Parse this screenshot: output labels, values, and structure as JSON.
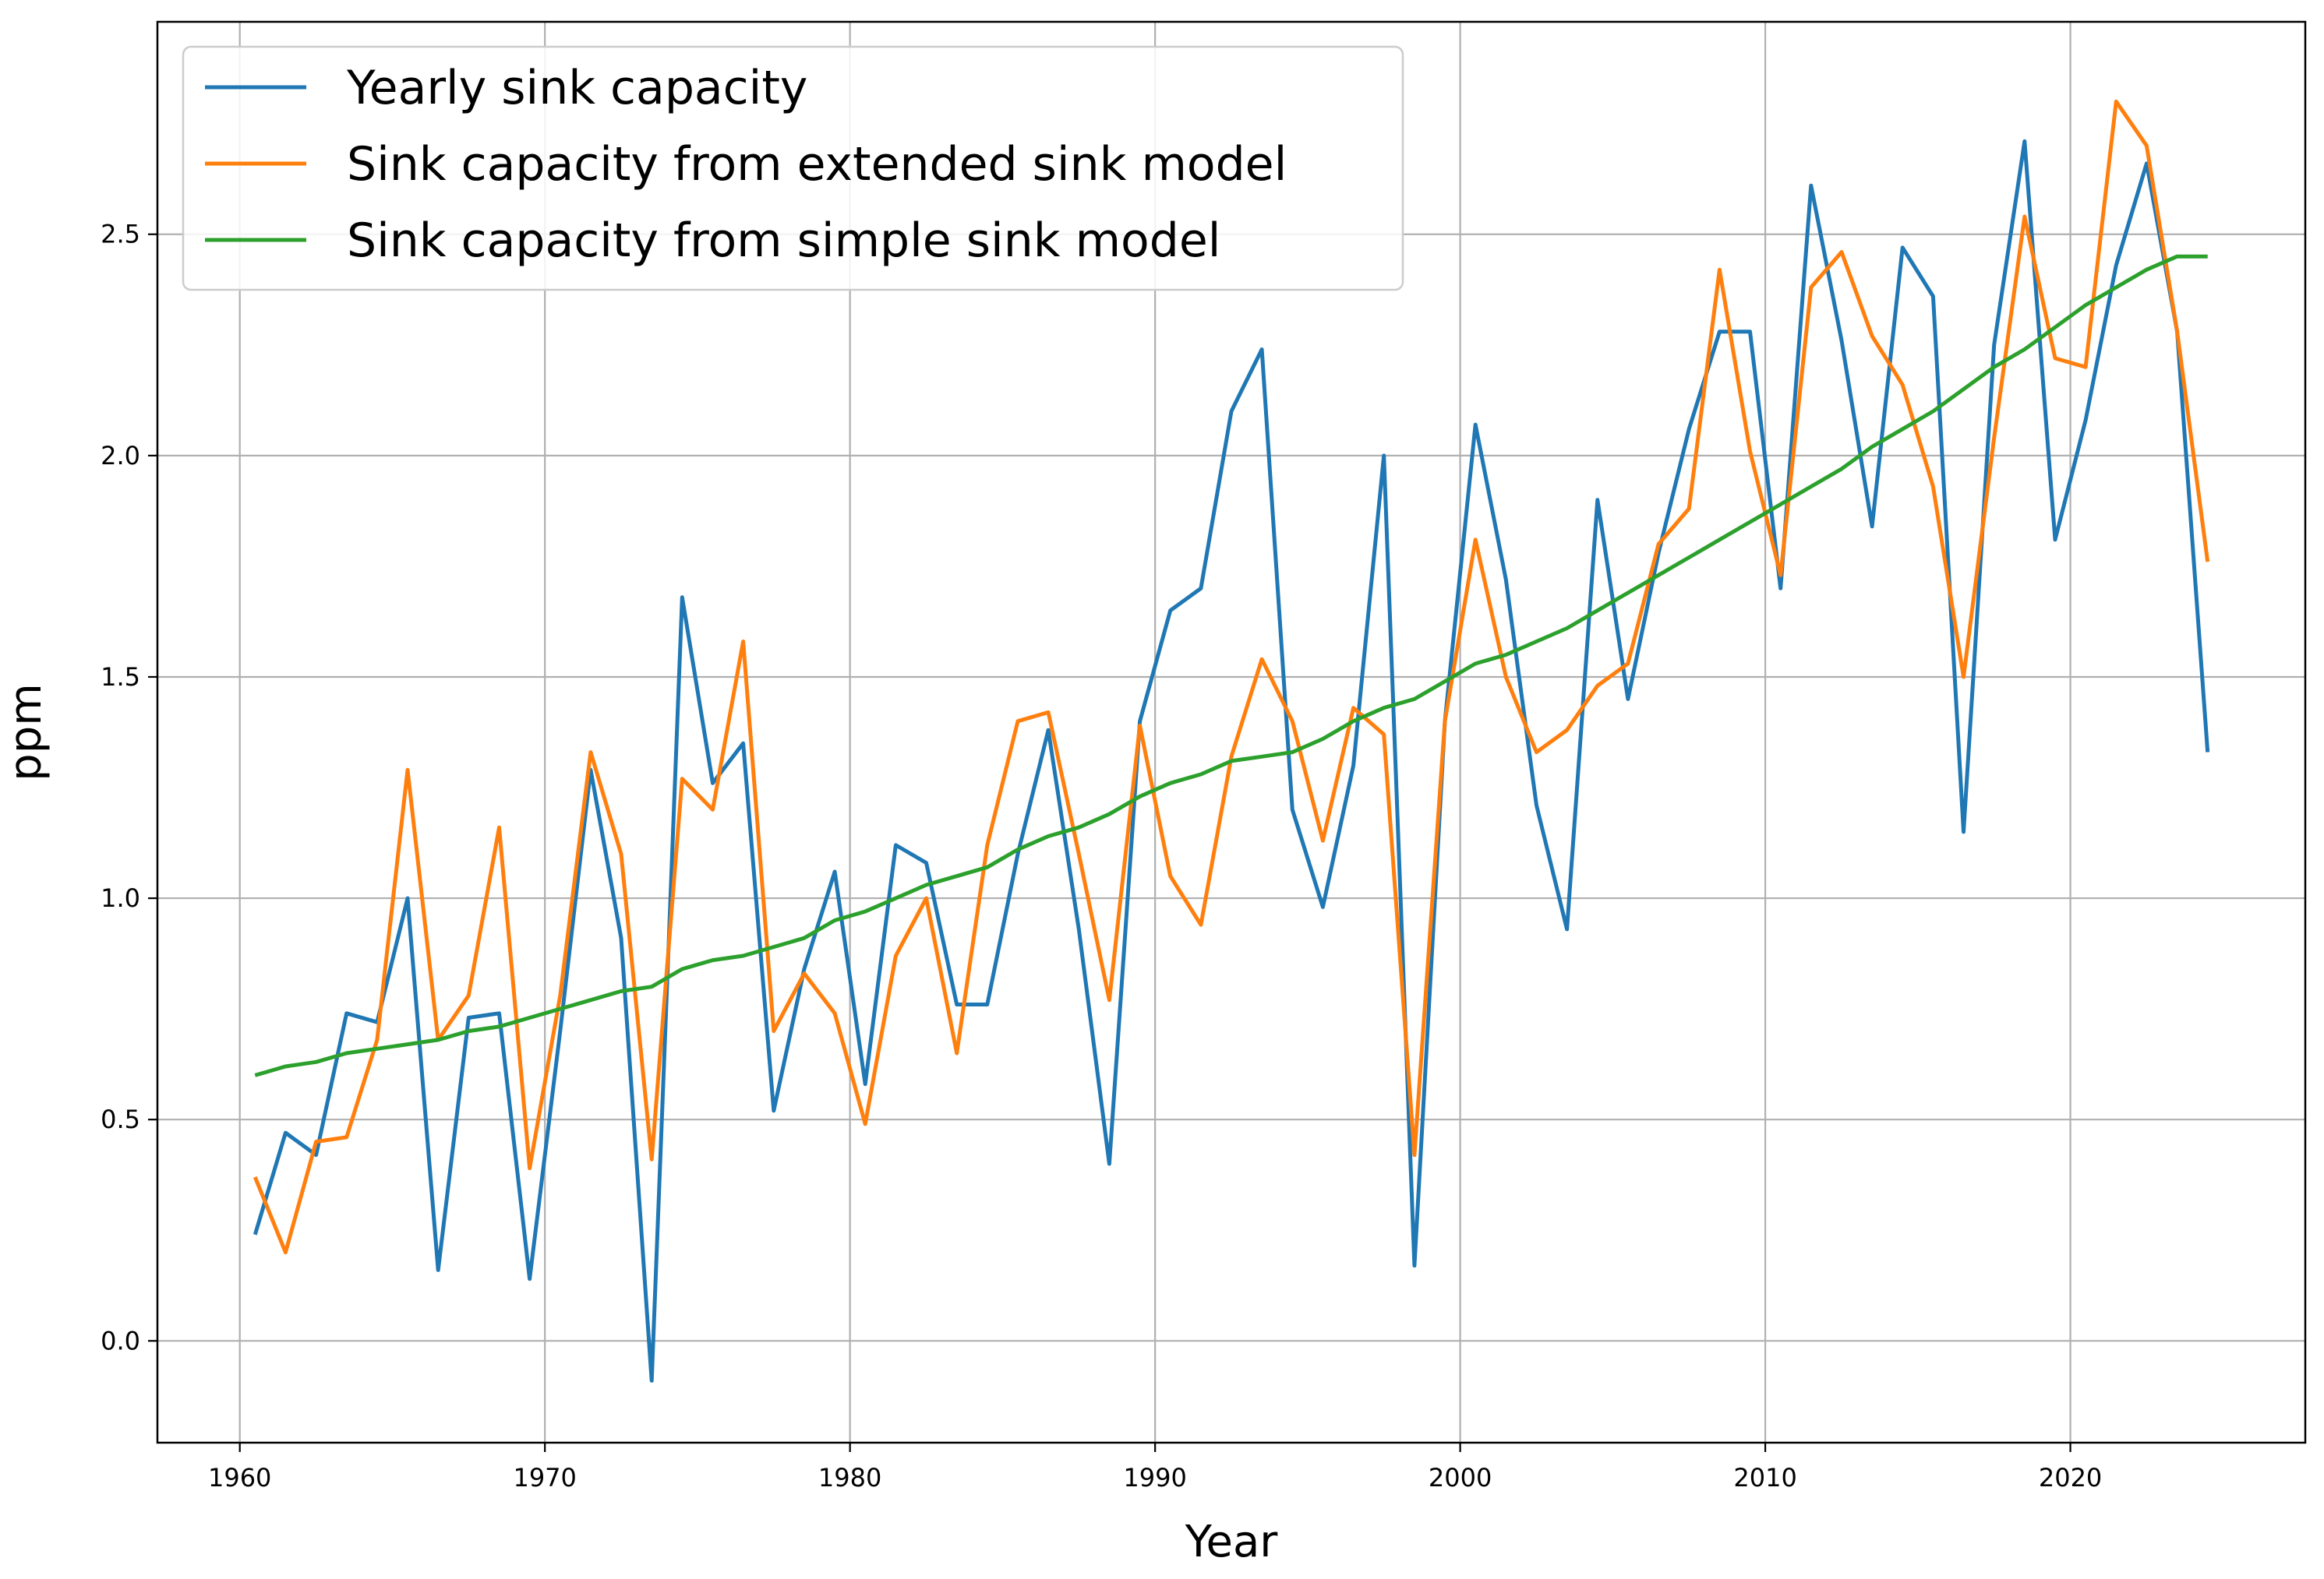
{
  "chart_data": {
    "type": "line",
    "xlabel": "Year",
    "ylabel": "ppm",
    "xlim": [
      1957.3,
      2027.7
    ],
    "ylim": [
      -0.23,
      2.98
    ],
    "xticks": [
      1960,
      1970,
      1980,
      1990,
      2000,
      2010,
      2020
    ],
    "yticks": [
      0.0,
      0.5,
      1.0,
      1.5,
      2.0,
      2.5
    ],
    "ytick_labels": [
      "0.0",
      "0.5",
      "1.0",
      "1.5",
      "2.0",
      "2.5"
    ],
    "grid": true,
    "legend_placement": "top-left",
    "x": [
      1960.5,
      1961.5,
      1962.5,
      1963.5,
      1964.5,
      1965.5,
      1966.5,
      1967.5,
      1968.5,
      1969.5,
      1970.5,
      1971.5,
      1972.5,
      1973.5,
      1974.5,
      1975.5,
      1976.5,
      1977.5,
      1978.5,
      1979.5,
      1980.5,
      1981.5,
      1982.5,
      1983.5,
      1984.5,
      1985.5,
      1986.5,
      1987.5,
      1988.5,
      1989.5,
      1990.5,
      1991.5,
      1992.5,
      1993.5,
      1994.5,
      1995.5,
      1996.5,
      1997.5,
      1998.5,
      1999.5,
      2000.5,
      2001.5,
      2002.5,
      2003.5,
      2004.5,
      2005.5,
      2006.5,
      2007.5,
      2008.5,
      2009.5,
      2010.5,
      2011.5,
      2012.5,
      2013.5,
      2014.5,
      2015.5,
      2016.5,
      2017.5,
      2018.5,
      2019.5,
      2020.5,
      2021.5,
      2022.5,
      2023.5,
      2024.5
    ],
    "series": [
      {
        "name": "Yearly sink capacity",
        "color": "#1f77b4",
        "values": [
          0.24,
          0.47,
          0.42,
          0.74,
          0.72,
          1.0,
          0.16,
          0.73,
          0.74,
          0.14,
          0.7,
          1.29,
          0.91,
          -0.09,
          1.68,
          1.26,
          1.35,
          0.52,
          0.84,
          1.06,
          0.58,
          1.12,
          1.08,
          0.76,
          0.76,
          1.1,
          1.38,
          0.93,
          0.4,
          1.4,
          1.65,
          1.7,
          2.1,
          2.24,
          1.2,
          0.98,
          1.3,
          2.0,
          0.17,
          1.4,
          2.07,
          1.72,
          1.21,
          0.93,
          1.9,
          1.45,
          1.78,
          2.06,
          2.28,
          2.28,
          1.7,
          2.61,
          2.26,
          1.84,
          2.47,
          2.36,
          1.15,
          2.25,
          2.71,
          1.81,
          2.08,
          2.43,
          2.66,
          2.28,
          1.33
        ]
      },
      {
        "name": "Sink capacity from extended sink model",
        "color": "#ff7f0e",
        "values": [
          0.37,
          0.2,
          0.45,
          0.46,
          0.68,
          1.29,
          0.68,
          0.78,
          1.16,
          0.39,
          0.78,
          1.33,
          1.1,
          0.41,
          1.27,
          1.2,
          1.58,
          0.7,
          0.83,
          0.74,
          0.49,
          0.87,
          1.0,
          0.65,
          1.12,
          1.4,
          1.42,
          1.1,
          0.77,
          1.39,
          1.05,
          0.94,
          1.32,
          1.54,
          1.4,
          1.13,
          1.43,
          1.37,
          0.42,
          1.4,
          1.81,
          1.5,
          1.33,
          1.38,
          1.48,
          1.53,
          1.8,
          1.88,
          2.42,
          2.01,
          1.73,
          2.38,
          2.46,
          2.27,
          2.16,
          1.93,
          1.5,
          2.04,
          2.54,
          2.22,
          2.2,
          2.8,
          2.7,
          2.28,
          1.76
        ]
      },
      {
        "name": "Sink capacity from simple sink model",
        "color": "#2ca02c",
        "values": [
          0.6,
          0.62,
          0.63,
          0.65,
          0.66,
          0.67,
          0.68,
          0.7,
          0.71,
          0.73,
          0.75,
          0.77,
          0.79,
          0.8,
          0.84,
          0.86,
          0.87,
          0.89,
          0.91,
          0.95,
          0.97,
          1.0,
          1.03,
          1.05,
          1.07,
          1.11,
          1.14,
          1.16,
          1.19,
          1.23,
          1.26,
          1.28,
          1.31,
          1.32,
          1.33,
          1.36,
          1.4,
          1.43,
          1.45,
          1.49,
          1.53,
          1.55,
          1.58,
          1.61,
          1.65,
          1.69,
          1.73,
          1.77,
          1.81,
          1.85,
          1.89,
          1.93,
          1.97,
          2.02,
          2.06,
          2.1,
          2.15,
          2.2,
          2.24,
          2.29,
          2.34,
          2.38,
          2.42,
          2.45,
          2.45
        ]
      }
    ]
  }
}
